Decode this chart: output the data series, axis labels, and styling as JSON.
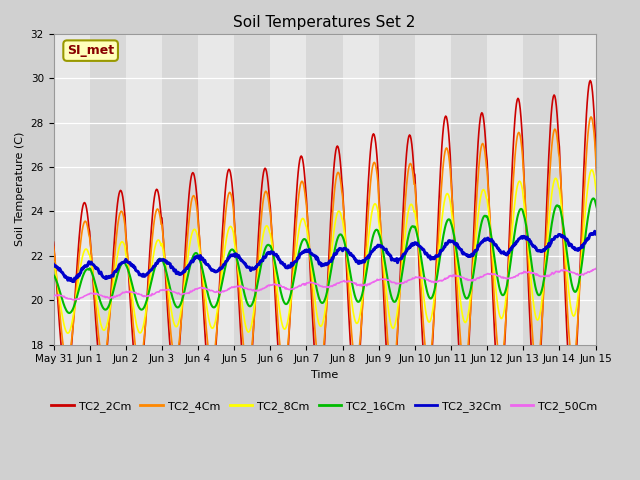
{
  "title": "Soil Temperatures Set 2",
  "xlabel": "Time",
  "ylabel": "Soil Temperature (C)",
  "ylim": [
    18,
    32
  ],
  "yticks": [
    18,
    20,
    22,
    24,
    26,
    28,
    30,
    32
  ],
  "series_colors": {
    "TC2_2Cm": "#cc0000",
    "TC2_4Cm": "#ff8800",
    "TC2_8Cm": "#ffff00",
    "TC2_16Cm": "#00bb00",
    "TC2_32Cm": "#0000cc",
    "TC2_50Cm": "#ee66ee"
  },
  "series_linewidths": {
    "TC2_2Cm": 1.2,
    "TC2_4Cm": 1.2,
    "TC2_8Cm": 1.2,
    "TC2_16Cm": 1.5,
    "TC2_32Cm": 2.2,
    "TC2_50Cm": 1.2
  },
  "annotation_text": "SI_met",
  "n_days": 16,
  "day_labels": [
    "May 31",
    "Jun 1",
    "Jun 2",
    "Jun 3",
    "Jun 4",
    "Jun 5",
    "Jun 6",
    "Jun 7",
    "Jun 8",
    "Jun 9",
    "Jun 10",
    "Jun 11",
    "Jun 12",
    "Jun 13",
    "Jun 14",
    "Jun 15"
  ],
  "title_fontsize": 11,
  "label_fontsize": 8,
  "tick_fontsize": 7.5,
  "legend_fontsize": 8,
  "fig_width": 6.4,
  "fig_height": 4.8,
  "fig_dpi": 100,
  "bg_color": "#d0d0d0",
  "ax_bg_color": "#e8e8e8",
  "grid_color": "#ffffff",
  "band_color_light": "#e8e8e8",
  "band_color_dark": "#d8d8d8"
}
